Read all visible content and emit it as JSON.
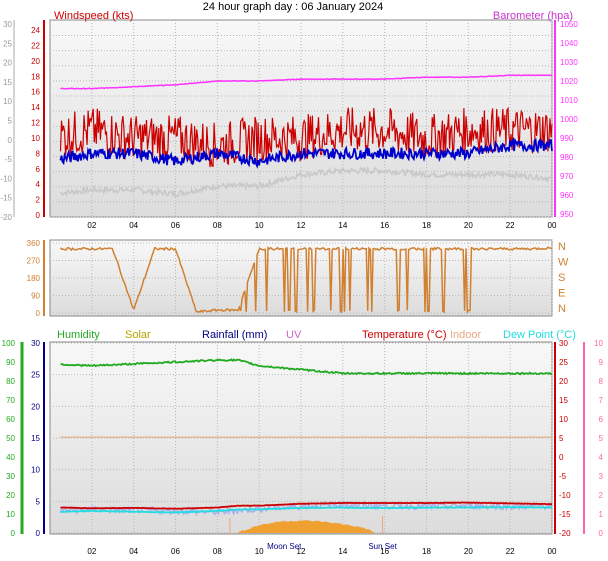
{
  "title": "24 hour graph day : 06 January 2024",
  "colors": {
    "windspeed": "#cc0000",
    "windavg": "#0000cc",
    "barometer": "#ff33ff",
    "gust_gray": "#c8c8c8",
    "winddir": "#d08030",
    "humidity": "#22aa22",
    "solar": "#b8a000",
    "rainfall": "#000080",
    "uv": "#cc66cc",
    "temperature": "#cc0000",
    "indoor": "#e8a880",
    "dewpoint": "#22dddd",
    "rain_fill": "#aab0ee",
    "solar_fill": "#f0a030",
    "humidity_axis": "#22aa22",
    "temp_axis": "#ff66aa",
    "rain_axis": "#000080"
  },
  "chart_data": [
    {
      "type": "line",
      "panel": "wind_pressure",
      "x_ticks": [
        "02",
        "04",
        "06",
        "08",
        "10",
        "12",
        "14",
        "16",
        "18",
        "20",
        "22",
        "00"
      ],
      "left_axis_outer": [
        "30",
        "25",
        "20",
        "15",
        "10",
        "5",
        "0",
        "-5",
        "-10",
        "-15",
        "-20"
      ],
      "left_axis_inner": [
        "24",
        "22",
        "20",
        "18",
        "16",
        "14",
        "12",
        "10",
        "8",
        "6",
        "4",
        "2",
        "0"
      ],
      "right_axis": [
        "1050",
        "1040",
        "1030",
        "1020",
        "1010",
        "1000",
        "990",
        "980",
        "970",
        "960",
        "950"
      ],
      "ylabel_left": "Windspeed (kts)",
      "ylabel_right": "Barometer (hpa)",
      "ylim_left": [
        0,
        25
      ],
      "ylim_right": [
        950,
        1050
      ],
      "grid": true,
      "series": [
        {
          "name": "Barometer (hpa)",
          "axis": "right",
          "x_hours": [
            0,
            2,
            4,
            6,
            8,
            10,
            12,
            14,
            16,
            18,
            20,
            22,
            24
          ],
          "values": [
            1016,
            1016,
            1017,
            1018,
            1020,
            1020,
            1021,
            1021,
            1021,
            1022,
            1022,
            1023,
            1023
          ]
        },
        {
          "name": "Windspeed (kts)",
          "axis": "left",
          "x_hours": [
            0,
            2,
            4,
            6,
            8,
            10,
            12,
            14,
            16,
            18,
            20,
            22,
            24
          ],
          "values": [
            10,
            11,
            10,
            10,
            9,
            10,
            10,
            11,
            11,
            10,
            11,
            11,
            11
          ]
        },
        {
          "name": "Average wind",
          "axis": "left",
          "x_hours": [
            0,
            2,
            4,
            6,
            8,
            10,
            12,
            14,
            16,
            18,
            20,
            22,
            24
          ],
          "values": [
            7,
            8,
            8,
            7,
            8,
            7,
            8,
            8,
            8,
            8,
            8,
            9,
            9
          ]
        },
        {
          "name": "Gray trace",
          "axis": "outer",
          "x_hours": [
            0,
            2,
            4,
            6,
            8,
            10,
            12,
            14,
            16,
            18,
            20,
            22,
            24
          ],
          "values": [
            -14,
            -13,
            -13,
            -14,
            -12,
            -12,
            -9,
            -8,
            -8,
            -9,
            -9,
            -9,
            -10
          ]
        }
      ]
    },
    {
      "type": "line",
      "panel": "wind_direction",
      "y_ticks": [
        "360",
        "270",
        "180",
        "90",
        "0"
      ],
      "compass": [
        "N",
        "W",
        "S",
        "E",
        "N"
      ],
      "ylim": [
        0,
        360
      ],
      "x_ticks": [
        "02",
        "04",
        "06",
        "08",
        "10",
        "12",
        "14",
        "16",
        "18",
        "20",
        "22",
        "00"
      ],
      "x_hours": [
        0,
        1,
        2,
        3,
        4,
        5,
        6,
        7,
        8,
        9,
        10,
        11,
        12,
        13,
        14,
        15,
        16,
        17,
        18,
        19,
        20,
        21,
        22,
        23,
        24
      ],
      "values": [
        330,
        330,
        330,
        330,
        15,
        330,
        330,
        5,
        15,
        15,
        330,
        330,
        330,
        330,
        330,
        330,
        330,
        330,
        330,
        330,
        330,
        330,
        330,
        330,
        335
      ]
    },
    {
      "type": "line",
      "panel": "temp_humidity",
      "legend": [
        "Humidity",
        "Solar",
        "Rainfall (mm)",
        "UV",
        "Temperature (°C)",
        "Indoor",
        "Dew Point (°C)"
      ],
      "y_ticks_humidity": [
        "100",
        "90",
        "80",
        "70",
        "60",
        "50",
        "40",
        "30",
        "20",
        "10",
        "0"
      ],
      "y_ticks_rain": [
        "30",
        "25",
        "20",
        "15",
        "10",
        "5",
        "0"
      ],
      "y_ticks_temp_outer": [
        "30",
        "25",
        "20",
        "15",
        "10",
        "5",
        "0",
        "-5",
        "-10",
        "-15",
        "-20"
      ],
      "y_ticks_temp_inner": [
        "10",
        "9",
        "8",
        "7",
        "6",
        "5",
        "4",
        "3",
        "2",
        "1",
        "0"
      ],
      "x_ticks": [
        "02",
        "04",
        "06",
        "08",
        "10",
        "12",
        "14",
        "16",
        "18",
        "20",
        "22",
        "00"
      ],
      "annotations": [
        "Moon Set",
        "Sun Set"
      ],
      "series": [
        {
          "name": "Humidity",
          "x_hours": [
            0,
            2,
            4,
            6,
            8,
            9,
            10,
            12,
            14,
            16,
            18,
            20,
            22,
            24
          ],
          "values": [
            89,
            88,
            89,
            90,
            91,
            91,
            88,
            86,
            84,
            84,
            84,
            84,
            84,
            84
          ]
        },
        {
          "name": "Temperature (°C)",
          "x_hours": [
            0,
            2,
            4,
            6,
            8,
            9,
            10,
            12,
            14,
            16,
            18,
            20,
            22,
            24
          ],
          "values": [
            -13.2,
            -13.5,
            -13.4,
            -13.6,
            -13.3,
            -12.8,
            -12.8,
            -12.3,
            -12.1,
            -12.1,
            -12.1,
            -12.0,
            -12.2,
            -12.4
          ]
        },
        {
          "name": "Dew Point (°C)",
          "x_hours": [
            0,
            2,
            4,
            6,
            8,
            9,
            10,
            12,
            14,
            16,
            18,
            20,
            22,
            24
          ],
          "values": [
            -14.5,
            -14.2,
            -14.4,
            -14.6,
            -14.2,
            -13.8,
            -13.8,
            -13.4,
            -13.3,
            -13.4,
            -13.3,
            -13.3,
            -13.2,
            -13.3
          ]
        },
        {
          "name": "Indoor",
          "x_hours": [
            0,
            24
          ],
          "values": [
            5.2,
            5.2
          ]
        },
        {
          "name": "Rainfall (mm)",
          "x_hours": [
            0,
            2,
            4,
            6,
            8,
            10,
            12,
            14,
            16,
            18,
            20,
            22,
            24
          ],
          "values": [
            3.5,
            3.7,
            3.6,
            3.5,
            3.3,
            3.8,
            4.2,
            4.5,
            4.3,
            4.2,
            4.3,
            4.2,
            4.3
          ]
        },
        {
          "name": "Solar",
          "x_hours": [
            9,
            10,
            11,
            12,
            13,
            14,
            15,
            15.5
          ],
          "values": [
            0,
            0.8,
            1.2,
            1.3,
            1.2,
            0.9,
            0.5,
            0
          ]
        }
      ]
    }
  ]
}
